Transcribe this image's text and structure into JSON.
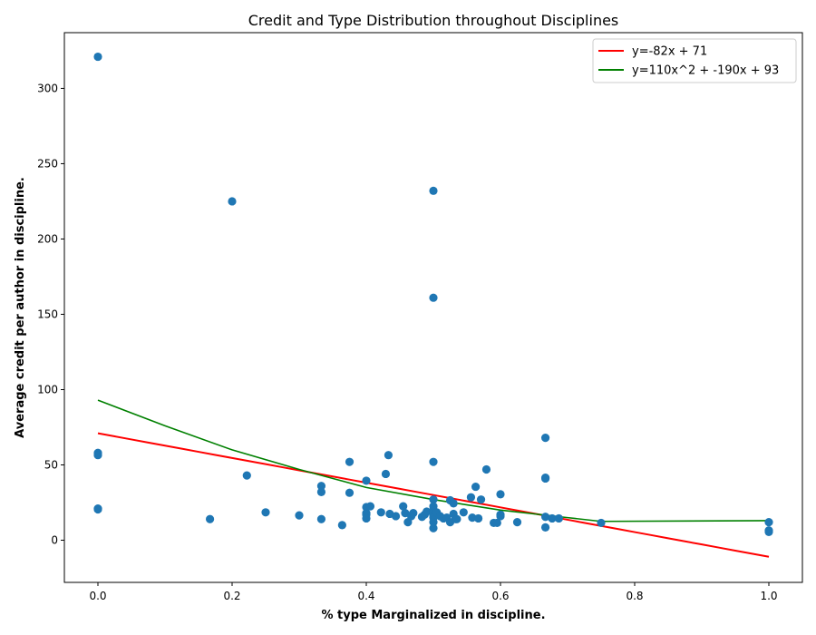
{
  "chart_data": {
    "type": "scatter",
    "title": "Credit and Type Distribution throughout Disciplines",
    "xlabel": "% type Marginalized in discipline.",
    "ylabel": "Average credit per author in discipline.",
    "xlim": [
      -0.05,
      1.05
    ],
    "ylim": [
      -28,
      337
    ],
    "xticks": [
      0.0,
      0.2,
      0.4,
      0.6,
      0.8,
      1.0
    ],
    "xtick_labels": [
      "0.0",
      "0.2",
      "0.4",
      "0.6",
      "0.8",
      "1.0"
    ],
    "yticks": [
      0,
      50,
      100,
      150,
      200,
      250,
      300
    ],
    "ytick_labels": [
      "0",
      "50",
      "100",
      "150",
      "200",
      "250",
      "300"
    ],
    "grid": false,
    "legend_position": "top-right",
    "points_color": "#1f77b4",
    "points": [
      [
        0.0,
        321
      ],
      [
        0.0,
        58
      ],
      [
        0.0,
        56.5
      ],
      [
        0.0,
        21
      ],
      [
        0.0,
        20.5
      ],
      [
        0.167,
        14
      ],
      [
        0.2,
        225
      ],
      [
        0.222,
        43
      ],
      [
        0.25,
        18.5
      ],
      [
        0.3,
        16.5
      ],
      [
        0.333,
        36
      ],
      [
        0.333,
        32
      ],
      [
        0.333,
        14
      ],
      [
        0.364,
        10
      ],
      [
        0.375,
        52
      ],
      [
        0.375,
        31.5
      ],
      [
        0.4,
        39.5
      ],
      [
        0.4,
        22
      ],
      [
        0.4,
        18
      ],
      [
        0.4,
        17
      ],
      [
        0.4,
        14.5
      ],
      [
        0.406,
        22.5
      ],
      [
        0.422,
        18.5
      ],
      [
        0.429,
        44
      ],
      [
        0.433,
        56.5
      ],
      [
        0.435,
        17.5
      ],
      [
        0.444,
        16
      ],
      [
        0.455,
        22.5
      ],
      [
        0.458,
        18
      ],
      [
        0.462,
        12
      ],
      [
        0.467,
        16
      ],
      [
        0.47,
        18
      ],
      [
        0.483,
        15.5
      ],
      [
        0.487,
        17
      ],
      [
        0.49,
        19
      ],
      [
        0.5,
        232
      ],
      [
        0.5,
        161
      ],
      [
        0.5,
        52
      ],
      [
        0.5,
        27
      ],
      [
        0.5,
        22.5
      ],
      [
        0.5,
        20
      ],
      [
        0.5,
        18
      ],
      [
        0.5,
        16.5
      ],
      [
        0.5,
        15
      ],
      [
        0.5,
        12
      ],
      [
        0.5,
        8
      ],
      [
        0.505,
        18.5
      ],
      [
        0.51,
        16
      ],
      [
        0.515,
        14.5
      ],
      [
        0.52,
        15
      ],
      [
        0.525,
        26.5
      ],
      [
        0.525,
        12
      ],
      [
        0.53,
        24.5
      ],
      [
        0.53,
        17.5
      ],
      [
        0.533,
        14
      ],
      [
        0.535,
        14
      ],
      [
        0.545,
        18.5
      ],
      [
        0.556,
        28.5
      ],
      [
        0.558,
        15
      ],
      [
        0.563,
        35.5
      ],
      [
        0.567,
        14.5
      ],
      [
        0.571,
        27
      ],
      [
        0.579,
        47
      ],
      [
        0.59,
        11.5
      ],
      [
        0.595,
        11.5
      ],
      [
        0.6,
        30.5
      ],
      [
        0.6,
        17
      ],
      [
        0.6,
        16
      ],
      [
        0.625,
        12
      ],
      [
        0.667,
        68
      ],
      [
        0.667,
        41.5
      ],
      [
        0.667,
        41
      ],
      [
        0.667,
        15.5
      ],
      [
        0.667,
        8.5
      ],
      [
        0.677,
        14.5
      ],
      [
        0.687,
        14.5
      ],
      [
        0.75,
        11.5
      ],
      [
        1.0,
        12
      ],
      [
        1.0,
        6.5
      ],
      [
        1.0,
        5.5
      ]
    ],
    "series": [
      {
        "name": "y=-82x + 71",
        "type": "line",
        "color": "#ff0000",
        "x_range": [
          0.0,
          1.0
        ],
        "coefficients": [
          0,
          -82,
          71
        ]
      },
      {
        "name": "y=110x^2 + -190x + 93",
        "type": "line",
        "color": "#008000",
        "x": [
          0.0,
          0.1,
          0.2,
          0.3,
          0.4,
          0.5,
          0.6,
          0.7,
          0.75,
          1.0
        ],
        "y": [
          93,
          76,
          60,
          47,
          35,
          27,
          20,
          15,
          12.5,
          13
        ]
      }
    ]
  }
}
